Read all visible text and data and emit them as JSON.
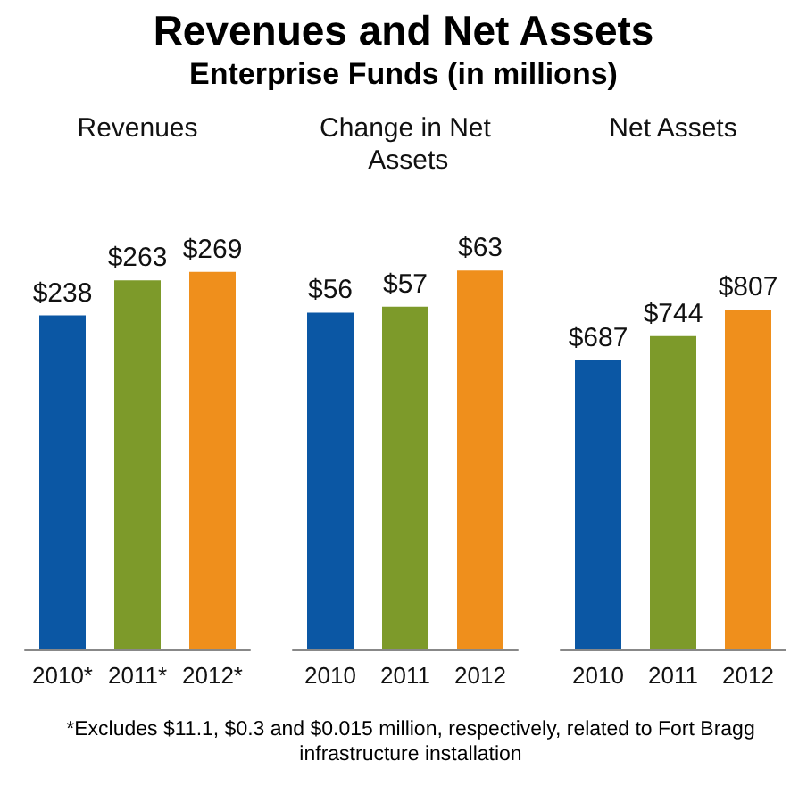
{
  "chart_data": [
    {
      "type": "bar",
      "title": "Revenues",
      "categories": [
        "2010*",
        "2011*",
        "2012*"
      ],
      "values": [
        238,
        263,
        269
      ],
      "colors": [
        "#0b57a4",
        "#7d9a2a",
        "#ef8f1c"
      ],
      "value_labels": [
        "$238",
        "$263",
        "$269"
      ],
      "tick_labels": "x",
      "annotations": [
        "Revenues and Net Assets",
        "Enterprise Funds (in millions)"
      ]
    },
    {
      "type": "bar",
      "title": "Change in Net Assets",
      "categories": [
        "2010",
        "2011",
        "2012"
      ],
      "values": [
        56,
        57,
        63
      ],
      "colors": [
        "#0b57a4",
        "#7d9a2a",
        "#ef8f1c"
      ],
      "value_labels": [
        "$56",
        "$57",
        "$63"
      ],
      "tick_labels": "x"
    },
    {
      "type": "bar",
      "title": "Net Assets",
      "categories": [
        "2010",
        "2011",
        "2012"
      ],
      "values": [
        687,
        744,
        807
      ],
      "colors": [
        "#0b57a4",
        "#7d9a2a",
        "#ef8f1c"
      ],
      "value_labels": [
        "$687",
        "$744",
        "$807"
      ],
      "tick_labels": "x",
      "annotations": [
        "*Excludes $11.1, $0.3 and $0.015 million, respectively, related to Fort Bragg infrastructure installation"
      ]
    }
  ]
}
